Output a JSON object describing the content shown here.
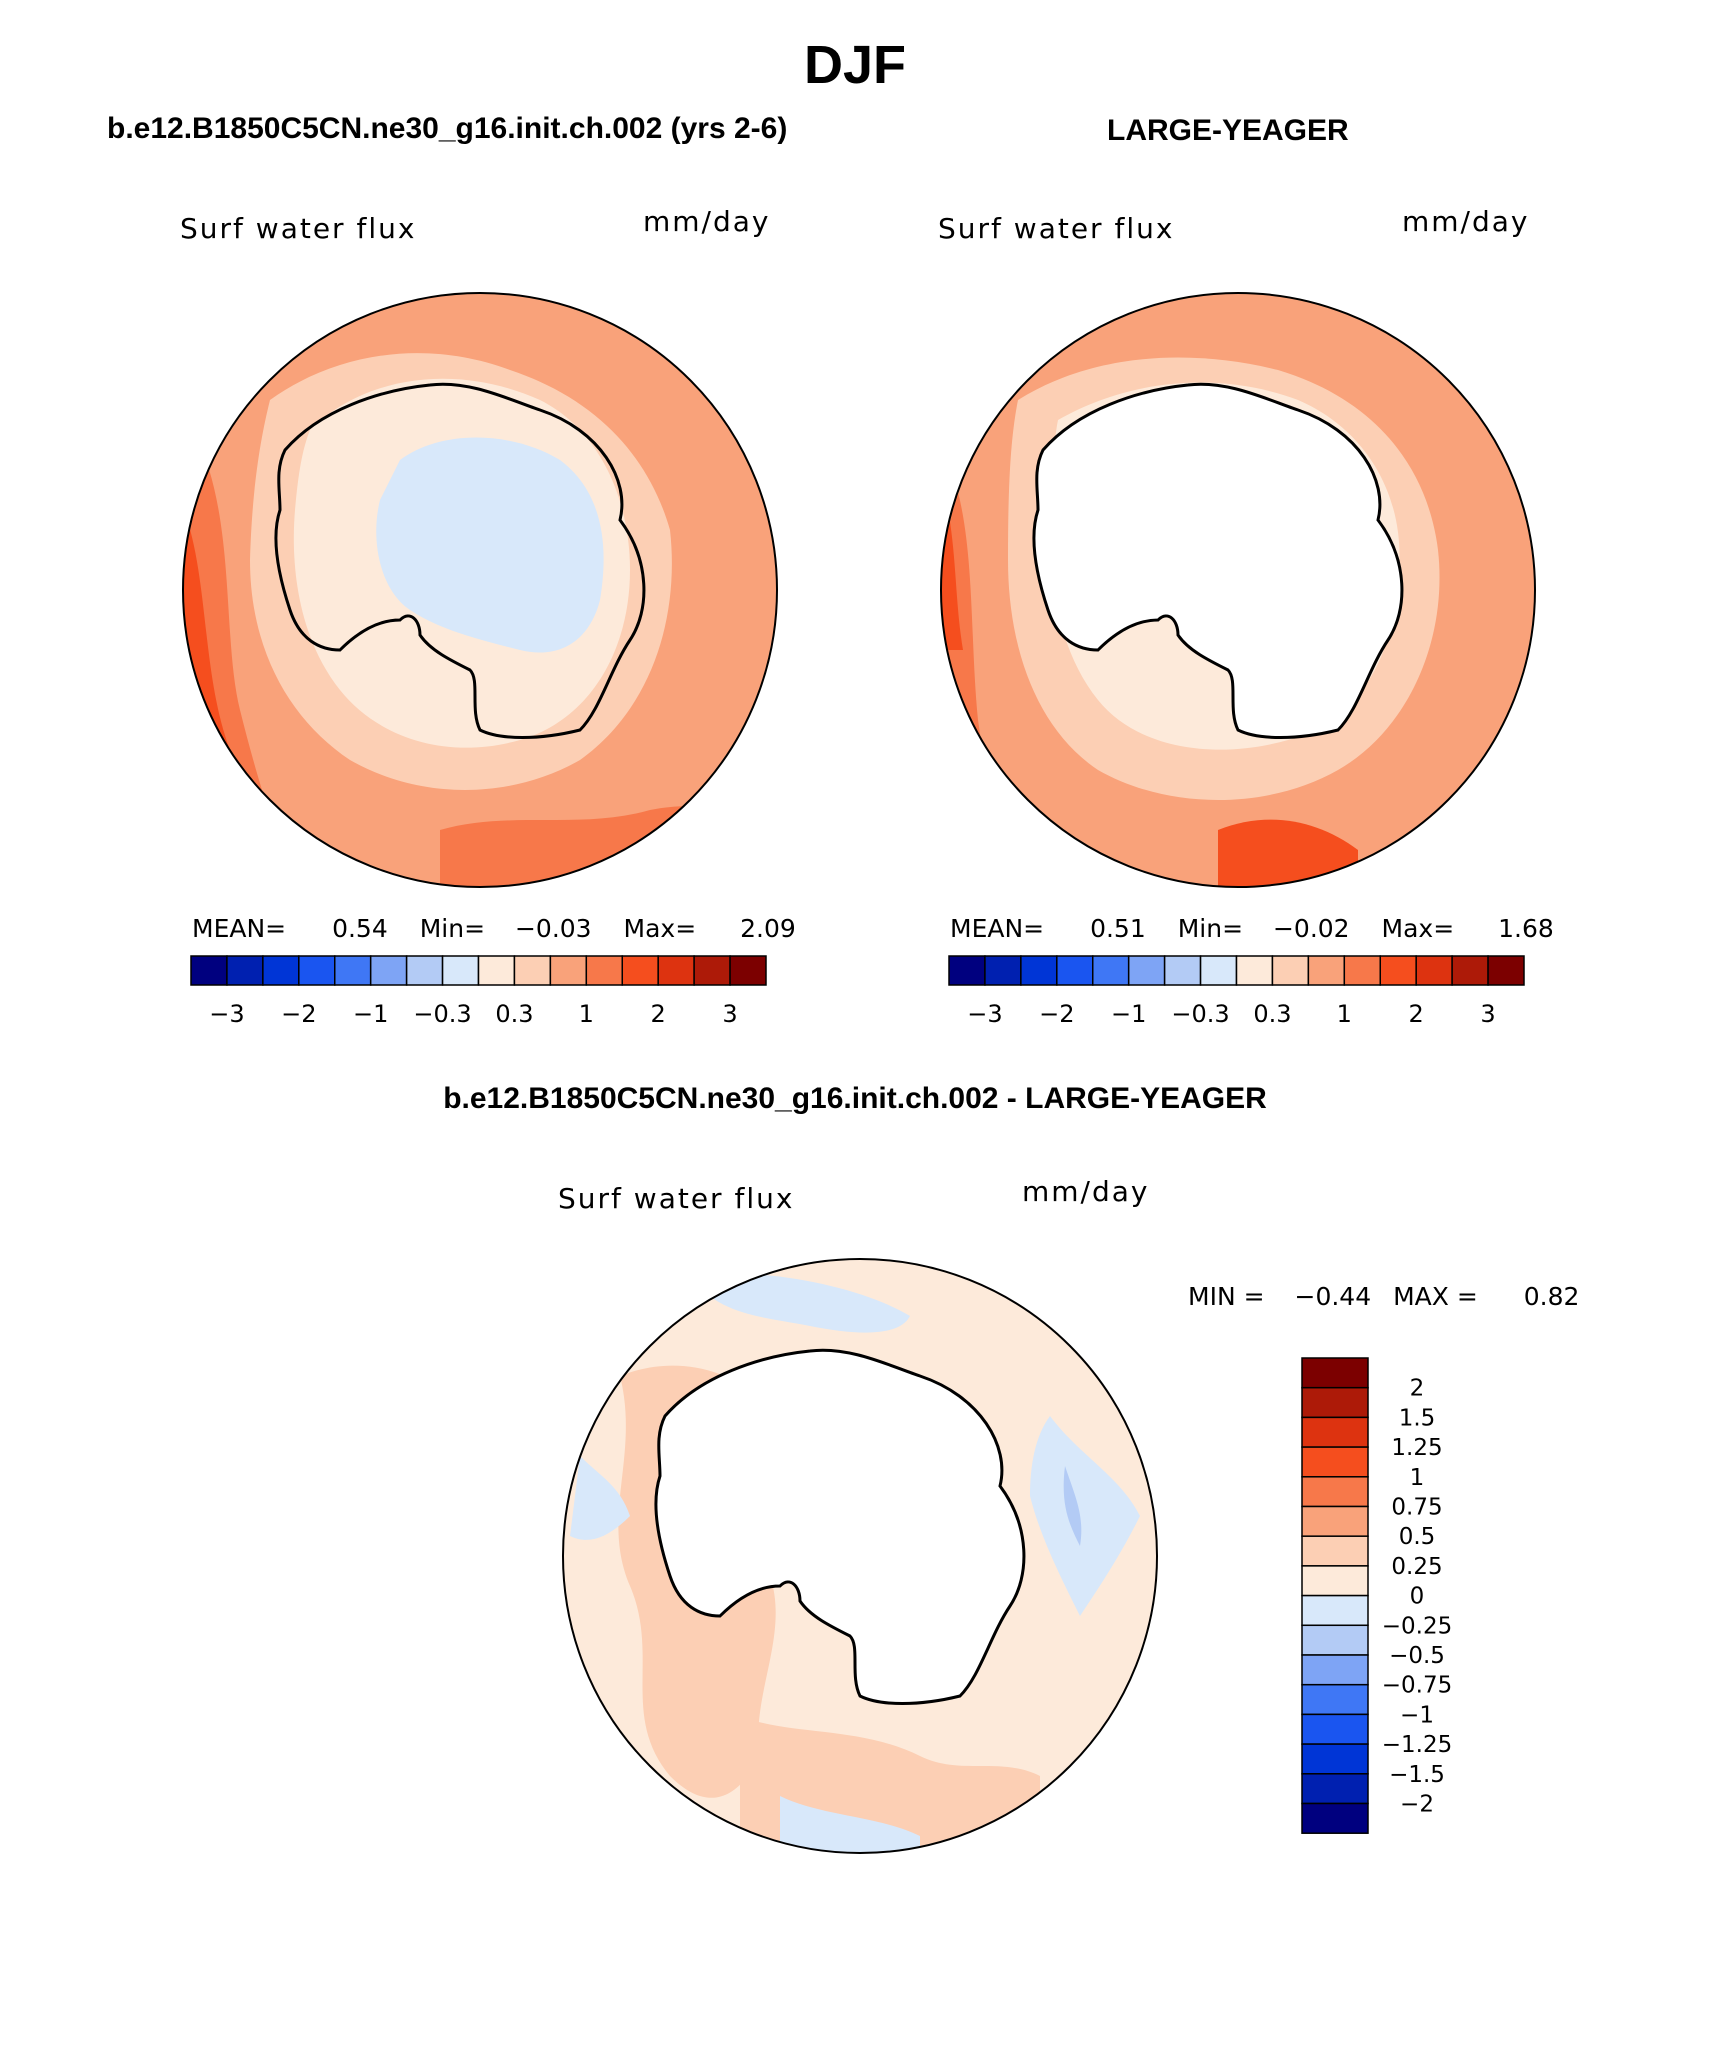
{
  "title": "DJF",
  "panels": [
    {
      "id": "case",
      "title": "b.e12.B1850C5CN.ne30_g16.init.ch.002 (yrs 2-6)",
      "variable": "Surf water flux",
      "units": "mm/day",
      "mean_label": "MEAN=",
      "mean_value": "0.54",
      "min_label": "Min=",
      "min_value": "−0.03",
      "max_label": "Max=",
      "max_value": "2.09"
    },
    {
      "id": "obs",
      "title": "LARGE-YEAGER",
      "variable": "Surf water flux",
      "units": "mm/day",
      "mean_label": "MEAN=",
      "mean_value": "0.51",
      "min_label": "Min=",
      "min_value": "−0.02",
      "max_label": "Max=",
      "max_value": "1.68"
    }
  ],
  "diff": {
    "title": "b.e12.B1850C5CN.ne30_g16.init.ch.002 - LARGE-YEAGER",
    "variable": "Surf water flux",
    "units": "mm/day",
    "min_label": "MIN =",
    "min_value": "−0.44",
    "max_label": "MAX =",
    "max_value": "0.82"
  },
  "colorbar": {
    "colors": [
      "#00007f",
      "#0020b0",
      "#0035d6",
      "#1a55f0",
      "#3f77f5",
      "#7ea4f5",
      "#b3cbf5",
      "#d8e8fa",
      "#fdeada",
      "#fccfb4",
      "#f9a27a",
      "#f7784a",
      "#f54e1e",
      "#dd3310",
      "#ad1a08",
      "#7c0000"
    ],
    "labels": [
      "−3",
      "−2",
      "−1",
      "−0.3",
      "0.3",
      "1",
      "2",
      "3"
    ]
  },
  "diff_colorbar": {
    "colors": [
      "#00007f",
      "#0020b0",
      "#0035d6",
      "#1a55f0",
      "#3f77f5",
      "#7ea4f5",
      "#b3cbf5",
      "#d8e8fa",
      "#fdeada",
      "#fccfb4",
      "#f9a27a",
      "#f7784a",
      "#f54e1e",
      "#dd3310",
      "#ad1a08",
      "#7c0000"
    ],
    "labels": [
      "2",
      "1.5",
      "1.25",
      "1",
      "0.75",
      "0.5",
      "0.25",
      "0",
      "−0.25",
      "−0.5",
      "−0.75",
      "−1",
      "−1.25",
      "−1.5",
      "−2"
    ]
  },
  "map_colors": {
    "orange_mid": "#f9a27a",
    "orange_strong": "#f7784a",
    "red_orange": "#f54e1e",
    "peach": "#fccfb4",
    "cream": "#fdeada",
    "pale_blue": "#d8e8fa",
    "light_blue": "#b3cbf5",
    "land_white": "#ffffff"
  }
}
